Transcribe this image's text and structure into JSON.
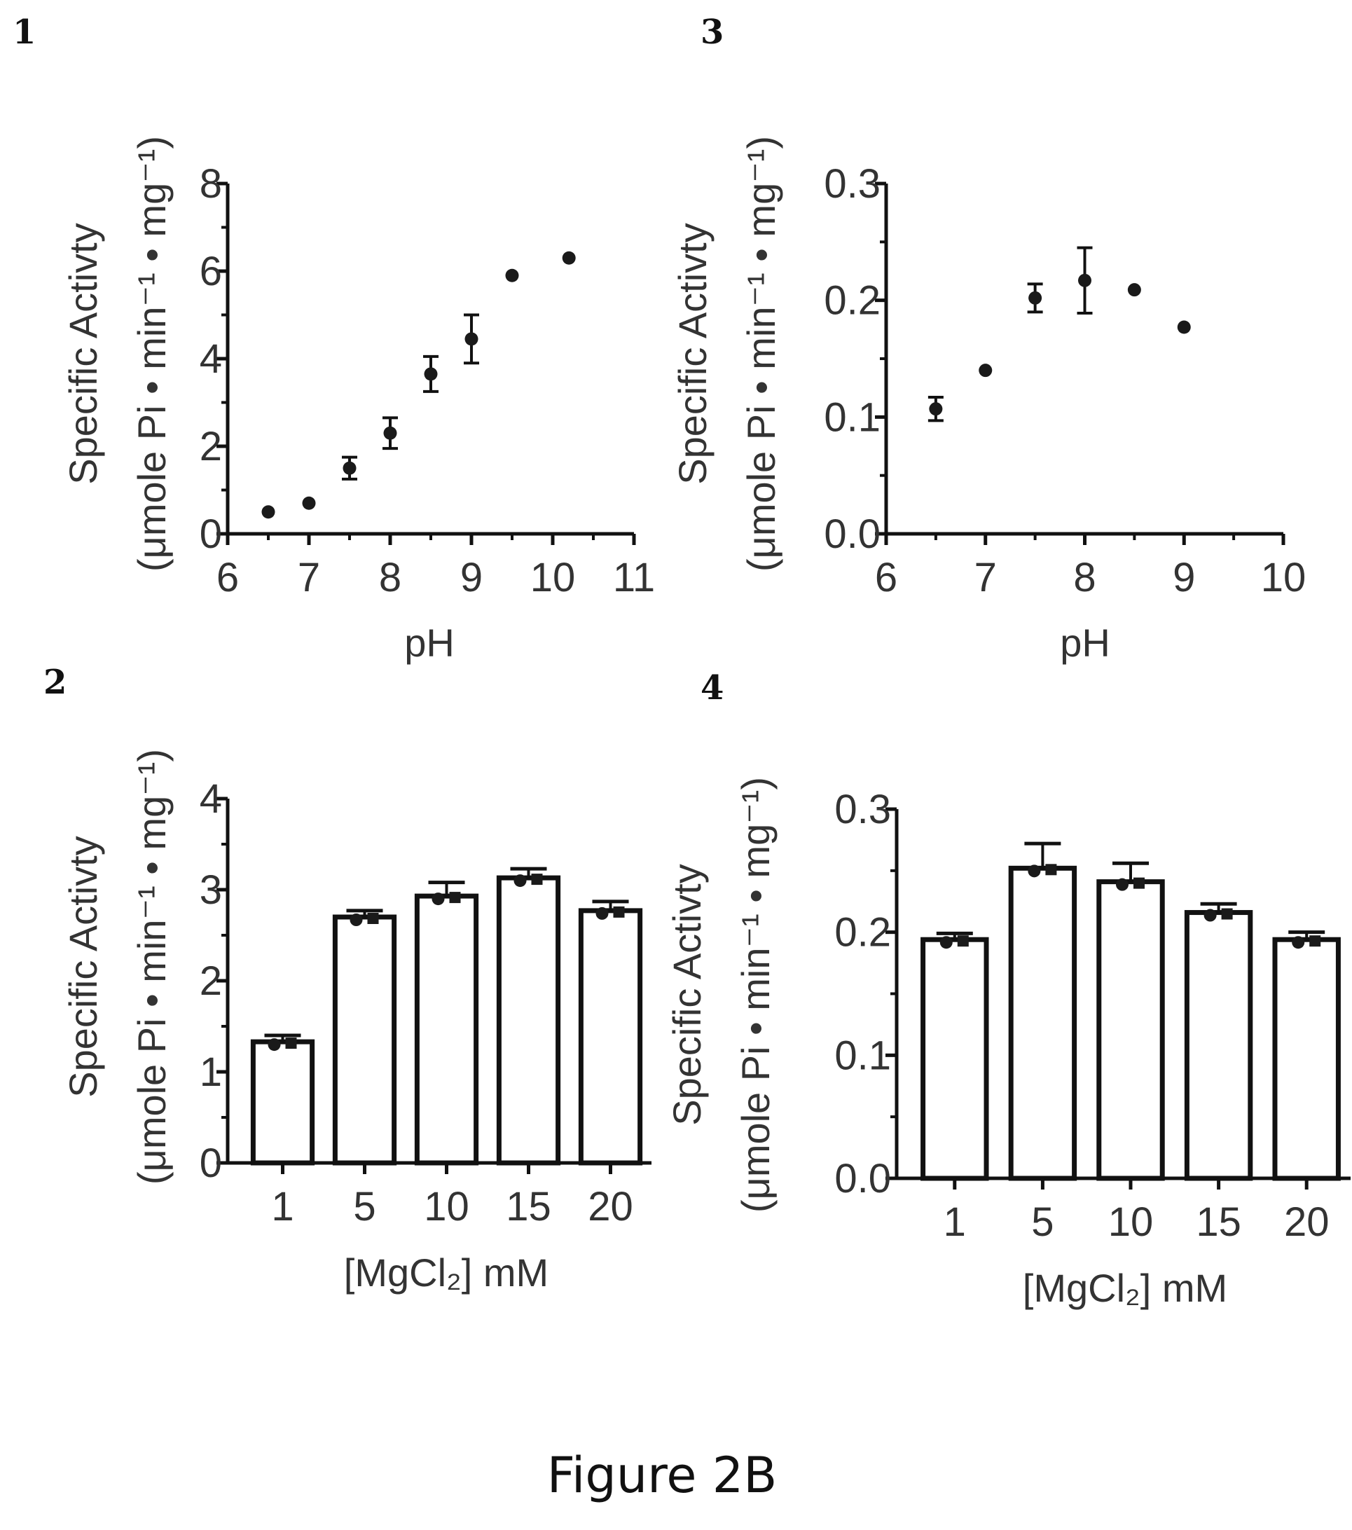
{
  "figure": {
    "caption": "Figure 2B"
  },
  "chart_data": [
    {
      "panel_label": "1",
      "type": "scatter",
      "xlabel": "pH",
      "ylabel_line1": "Specific Activty",
      "ylabel_line2": "(μmole Pi • min⁻¹ • mg⁻¹)",
      "xlim": [
        6,
        11
      ],
      "ylim": [
        0,
        8
      ],
      "xticks": [
        "6",
        "7",
        "8",
        "9",
        "10",
        "11"
      ],
      "yticks": [
        "0",
        "2",
        "4",
        "6",
        "8"
      ],
      "points": [
        {
          "x": 6.5,
          "y": 0.5,
          "err": 0
        },
        {
          "x": 7.0,
          "y": 0.7,
          "err": 0
        },
        {
          "x": 7.5,
          "y": 1.5,
          "err": 0.25
        },
        {
          "x": 8.0,
          "y": 2.3,
          "err": 0.35
        },
        {
          "x": 8.5,
          "y": 3.65,
          "err": 0.4
        },
        {
          "x": 9.0,
          "y": 4.45,
          "err": 0.55
        },
        {
          "x": 9.5,
          "y": 5.9,
          "err": 0
        },
        {
          "x": 10.2,
          "y": 6.3,
          "err": 0
        }
      ]
    },
    {
      "panel_label": "3",
      "type": "scatter",
      "xlabel": "pH",
      "ylabel_line1": "Specific Activty",
      "ylabel_line2": "(μmole Pi • min⁻¹ • mg⁻¹)",
      "xlim": [
        6,
        10
      ],
      "ylim": [
        0,
        0.3
      ],
      "xticks": [
        "6",
        "7",
        "8",
        "9",
        "10"
      ],
      "yticks": [
        "0.0",
        "0.1",
        "0.2",
        "0.3"
      ],
      "points": [
        {
          "x": 6.5,
          "y": 0.107,
          "err": 0.01
        },
        {
          "x": 7.0,
          "y": 0.14,
          "err": 0
        },
        {
          "x": 7.5,
          "y": 0.202,
          "err": 0.012
        },
        {
          "x": 8.0,
          "y": 0.217,
          "err": 0.028
        },
        {
          "x": 8.5,
          "y": 0.209,
          "err": 0
        },
        {
          "x": 9.0,
          "y": 0.177,
          "err": 0
        }
      ]
    },
    {
      "panel_label": "2",
      "type": "bar",
      "xlabel": "[MgCl₂] mM",
      "ylabel_line1": "Specific Activty",
      "ylabel_line2": "(μmole Pi • min⁻¹ • mg⁻¹)",
      "ylim": [
        0,
        4
      ],
      "yticks": [
        "0",
        "1",
        "2",
        "3",
        "4"
      ],
      "categories": [
        "1",
        "5",
        "10",
        "15",
        "20"
      ],
      "values": [
        1.33,
        2.7,
        2.93,
        3.13,
        2.77
      ],
      "errors": [
        0.07,
        0.07,
        0.15,
        0.1,
        0.1
      ]
    },
    {
      "panel_label": "4",
      "type": "bar",
      "xlabel": "[MgCl₂] mM",
      "ylabel_line1": "Specific Activty",
      "ylabel_line2": "(μmole Pi • min⁻¹ • mg⁻¹)",
      "ylim": [
        0,
        0.3
      ],
      "yticks": [
        "0.0",
        "0.1",
        "0.2",
        "0.3"
      ],
      "categories": [
        "1",
        "5",
        "10",
        "15",
        "20"
      ],
      "values": [
        0.194,
        0.252,
        0.241,
        0.216,
        0.194
      ],
      "errors": [
        0.005,
        0.02,
        0.015,
        0.007,
        0.006
      ]
    }
  ]
}
